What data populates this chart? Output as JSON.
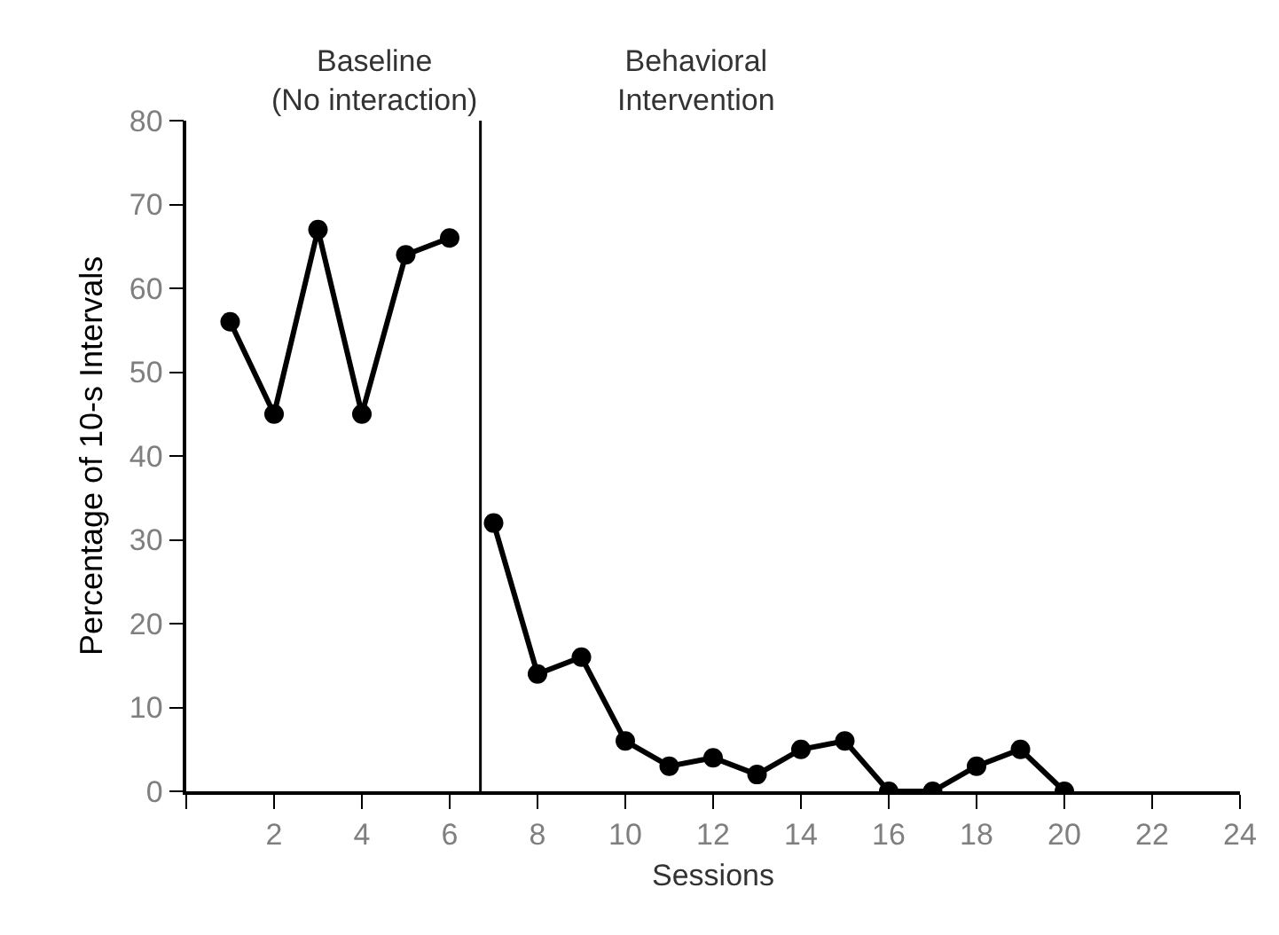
{
  "chart_data": {
    "type": "line",
    "xlabel": "Sessions",
    "ylabel": "Percentage of 10-s Intervals",
    "series": [
      {
        "color": "#000000",
        "x": [
          1,
          2,
          3,
          4,
          5,
          6
        ],
        "values": [
          56,
          45,
          67,
          45,
          64,
          66
        ]
      },
      {
        "color": "#000000",
        "x": [
          7,
          8,
          9,
          10,
          11,
          12,
          13,
          14,
          15,
          16,
          17,
          18,
          19,
          20
        ],
        "values": [
          32,
          14,
          16,
          6,
          3,
          4,
          2,
          5,
          6,
          0,
          0,
          3,
          5,
          0
        ]
      }
    ],
    "xlim": [
      0,
      24
    ],
    "xticks": [
      {
        "value": 0,
        "label": null
      },
      2,
      4,
      6,
      8,
      10,
      12,
      14,
      16,
      18,
      20,
      22,
      24
    ],
    "ylim": [
      0,
      80
    ],
    "yticks": [
      0,
      10,
      20,
      30,
      40,
      50,
      60,
      70,
      80
    ],
    "ref_lines": [
      {
        "axis": "x",
        "value": 6.7,
        "color": "#000000"
      }
    ],
    "annotations": [
      "Baseline\n(No interaction)",
      "Behavioral\nIntervention"
    ],
    "grid": false,
    "marker": "circle",
    "line_style": "solid"
  }
}
